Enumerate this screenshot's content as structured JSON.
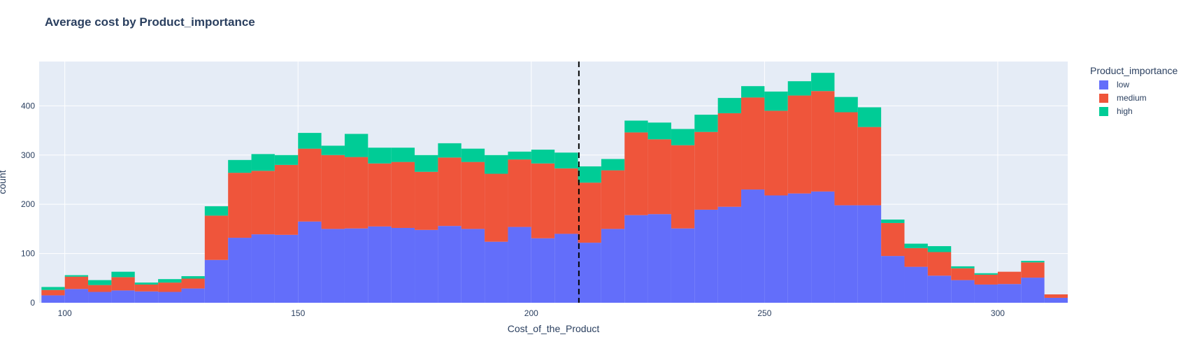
{
  "chart_data": {
    "type": "bar",
    "barmode": "stack",
    "title": "Average cost by Product_importance",
    "xlabel": "Cost_of_the_Product",
    "ylabel": "count",
    "xlim": [
      94.5,
      315
    ],
    "ylim": [
      0,
      490
    ],
    "xticks": [
      100,
      150,
      200,
      250,
      300
    ],
    "yticks": [
      0,
      100,
      200,
      300,
      400
    ],
    "grid": true,
    "legend_title": "Product_importance",
    "legend_position": "right",
    "vline": {
      "x": 210.2,
      "style": "dash",
      "color": "#000000"
    },
    "bin_width": 5,
    "bin_starts": [
      95,
      100,
      105,
      110,
      115,
      120,
      125,
      130,
      135,
      140,
      145,
      150,
      155,
      160,
      165,
      170,
      175,
      180,
      185,
      190,
      195,
      200,
      205,
      210,
      215,
      220,
      225,
      230,
      235,
      240,
      245,
      250,
      255,
      260,
      265,
      270,
      275,
      280,
      285,
      290,
      295,
      300,
      305,
      310
    ],
    "series": [
      {
        "name": "low",
        "color": "#636efa",
        "values": [
          15,
          28,
          22,
          25,
          23,
          22,
          29,
          87,
          132,
          139,
          138,
          165,
          150,
          151,
          155,
          152,
          148,
          156,
          150,
          124,
          154,
          131,
          140,
          122,
          150,
          178,
          180,
          151,
          189,
          195,
          230,
          218,
          222,
          226,
          198,
          198,
          95,
          73,
          55,
          46,
          37,
          38,
          51,
          10
        ]
      },
      {
        "name": "medium",
        "color": "#ef553b",
        "values": [
          11,
          25,
          14,
          27,
          14,
          19,
          20,
          90,
          132,
          129,
          142,
          148,
          150,
          145,
          128,
          134,
          118,
          139,
          136,
          138,
          137,
          152,
          133,
          122,
          119,
          168,
          152,
          169,
          158,
          190,
          187,
          172,
          199,
          204,
          189,
          159,
          67,
          38,
          48,
          24,
          20,
          25,
          31,
          7
        ]
      },
      {
        "name": "high",
        "color": "#00cc96",
        "values": [
          6,
          3,
          10,
          11,
          4,
          7,
          5,
          19,
          26,
          34,
          20,
          32,
          19,
          47,
          32,
          29,
          34,
          29,
          27,
          38,
          16,
          28,
          32,
          33,
          23,
          24,
          34,
          33,
          35,
          31,
          23,
          39,
          29,
          37,
          31,
          40,
          7,
          9,
          12,
          4,
          3,
          0,
          3,
          0
        ]
      }
    ]
  }
}
